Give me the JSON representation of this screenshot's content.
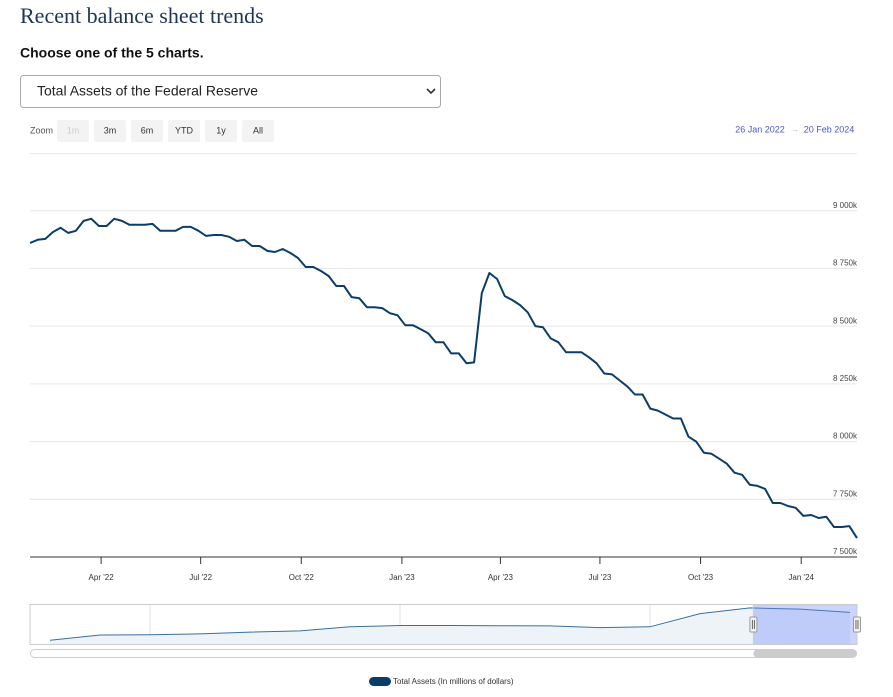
{
  "title": "Recent balance sheet trends",
  "prompt": "Choose one of the 5 charts.",
  "select": "Total Assets of the Federal Reserve",
  "chart_data": {
    "type": "line",
    "range_selector": {
      "zoom_label": "Zoom",
      "buttons": [
        "1m",
        "3m",
        "6m",
        "YTD",
        "1y",
        "All"
      ],
      "from": "26 Jan 2022",
      "arrow": "→",
      "to": "20 Feb 2024"
    },
    "x": [
      "2022-01-26",
      "2022-02-02",
      "2022-02-09",
      "2022-02-16",
      "2022-02-23",
      "2022-03-02",
      "2022-03-09",
      "2022-03-16",
      "2022-03-23",
      "2022-03-30",
      "2022-04-06",
      "2022-04-13",
      "2022-04-20",
      "2022-04-27",
      "2022-05-04",
      "2022-05-11",
      "2022-05-18",
      "2022-05-25",
      "2022-06-01",
      "2022-06-08",
      "2022-06-15",
      "2022-06-22",
      "2022-06-29",
      "2022-07-06",
      "2022-07-13",
      "2022-07-20",
      "2022-07-27",
      "2022-08-03",
      "2022-08-10",
      "2022-08-17",
      "2022-08-24",
      "2022-08-31",
      "2022-09-07",
      "2022-09-14",
      "2022-09-21",
      "2022-09-28",
      "2022-10-05",
      "2022-10-12",
      "2022-10-19",
      "2022-10-26",
      "2022-11-02",
      "2022-11-09",
      "2022-11-16",
      "2022-11-23",
      "2022-11-30",
      "2022-12-07",
      "2022-12-14",
      "2022-12-21",
      "2022-12-28",
      "2023-01-04",
      "2023-01-11",
      "2023-01-18",
      "2023-01-25",
      "2023-02-01",
      "2023-02-08",
      "2023-02-15",
      "2023-02-22",
      "2023-03-01",
      "2023-03-08",
      "2023-03-15",
      "2023-03-22",
      "2023-03-29",
      "2023-04-05",
      "2023-04-12",
      "2023-04-19",
      "2023-04-26",
      "2023-05-03",
      "2023-05-10",
      "2023-05-17",
      "2023-05-24",
      "2023-05-31",
      "2023-06-07",
      "2023-06-14",
      "2023-06-21",
      "2023-06-28",
      "2023-07-05",
      "2023-07-12",
      "2023-07-19",
      "2023-07-26",
      "2023-08-02",
      "2023-08-09",
      "2023-08-16",
      "2023-08-23",
      "2023-08-30",
      "2023-09-06",
      "2023-09-13",
      "2023-09-20",
      "2023-09-27",
      "2023-10-04",
      "2023-10-11",
      "2023-10-18",
      "2023-10-25",
      "2023-11-01",
      "2023-11-08",
      "2023-11-15",
      "2023-11-22",
      "2023-11-29",
      "2023-12-06",
      "2023-12-13",
      "2023-12-20",
      "2023-12-27",
      "2024-01-03",
      "2024-01-10",
      "2024-01-17",
      "2024-01-24",
      "2024-01-31",
      "2024-02-07",
      "2024-02-14",
      "2024-02-21"
    ],
    "series": [
      {
        "name": "Total Assets (In millions of dollars)",
        "color": "#0b3d6b",
        "values": [
          8860000,
          8874000,
          8878000,
          8908000,
          8926000,
          8904000,
          8913000,
          8956000,
          8965000,
          8934000,
          8934000,
          8965000,
          8956000,
          8939000,
          8939000,
          8939000,
          8943000,
          8913000,
          8913000,
          8913000,
          8930000,
          8930000,
          8913000,
          8891000,
          8895000,
          8895000,
          8887000,
          8869000,
          8874000,
          8847000,
          8847000,
          8826000,
          8821000,
          8834000,
          8817000,
          8795000,
          8756000,
          8756000,
          8739000,
          8717000,
          8674000,
          8674000,
          8626000,
          8621000,
          8582000,
          8582000,
          8578000,
          8556000,
          8547000,
          8504000,
          8504000,
          8487000,
          8469000,
          8430000,
          8430000,
          8382000,
          8382000,
          8339000,
          8343000,
          8643000,
          8730000,
          8704000,
          8630000,
          8613000,
          8591000,
          8560000,
          8500000,
          8495000,
          8447000,
          8430000,
          8387000,
          8387000,
          8387000,
          8365000,
          8339000,
          8295000,
          8291000,
          8265000,
          8239000,
          8204000,
          8204000,
          8143000,
          8134000,
          8117000,
          8100000,
          8100000,
          8021000,
          8000000,
          7952000,
          7947000,
          7926000,
          7904000,
          7865000,
          7856000,
          7813000,
          7808000,
          7795000,
          7734000,
          7734000,
          7721000,
          7713000,
          7678000,
          7682000,
          7669000,
          7674000,
          7630000,
          7630000,
          7634000,
          7582000
        ]
      }
    ],
    "xlim": [
      "2022-01-26",
      "2024-02-21"
    ],
    "xticks": [
      {
        "value": "2022-04-01",
        "label": "Apr '22"
      },
      {
        "value": "2022-07-01",
        "label": "Jul '22"
      },
      {
        "value": "2022-10-01",
        "label": "Oct '22"
      },
      {
        "value": "2023-01-01",
        "label": "Jan '23"
      },
      {
        "value": "2023-04-01",
        "label": "Apr '23"
      },
      {
        "value": "2023-07-01",
        "label": "Jul '23"
      },
      {
        "value": "2023-10-01",
        "label": "Oct '23"
      },
      {
        "value": "2024-01-01",
        "label": "Jan '24"
      }
    ],
    "ylim": [
      7500000,
      9250000
    ],
    "yticks": [
      {
        "value": 7500000,
        "label": "7 500k"
      },
      {
        "value": 7750000,
        "label": "7 750k"
      },
      {
        "value": 8000000,
        "label": "8 000k"
      },
      {
        "value": 8250000,
        "label": "8 250k"
      },
      {
        "value": 8500000,
        "label": "8 500k"
      },
      {
        "value": 8750000,
        "label": "8 750k"
      },
      {
        "value": 9000000,
        "label": "9 000k"
      }
    ],
    "grid": true,
    "navigator": {
      "x": [
        2008,
        2009,
        2010,
        2011,
        2012,
        2013,
        2014,
        2015,
        2016,
        2017,
        2018,
        2019,
        2020,
        2021,
        2022,
        2023,
        2024
      ],
      "values": [
        900000,
        2200000,
        2250000,
        2450000,
        2900000,
        3200000,
        4200000,
        4500000,
        4500000,
        4450000,
        4400000,
        4000000,
        4200000,
        7400000,
        8800000,
        8500000,
        7700000
      ],
      "xlim": [
        2007.6,
        2024.14
      ],
      "ylim": [
        0,
        9500000
      ],
      "xticks": [
        2010,
        2015,
        2020
      ]
    }
  }
}
